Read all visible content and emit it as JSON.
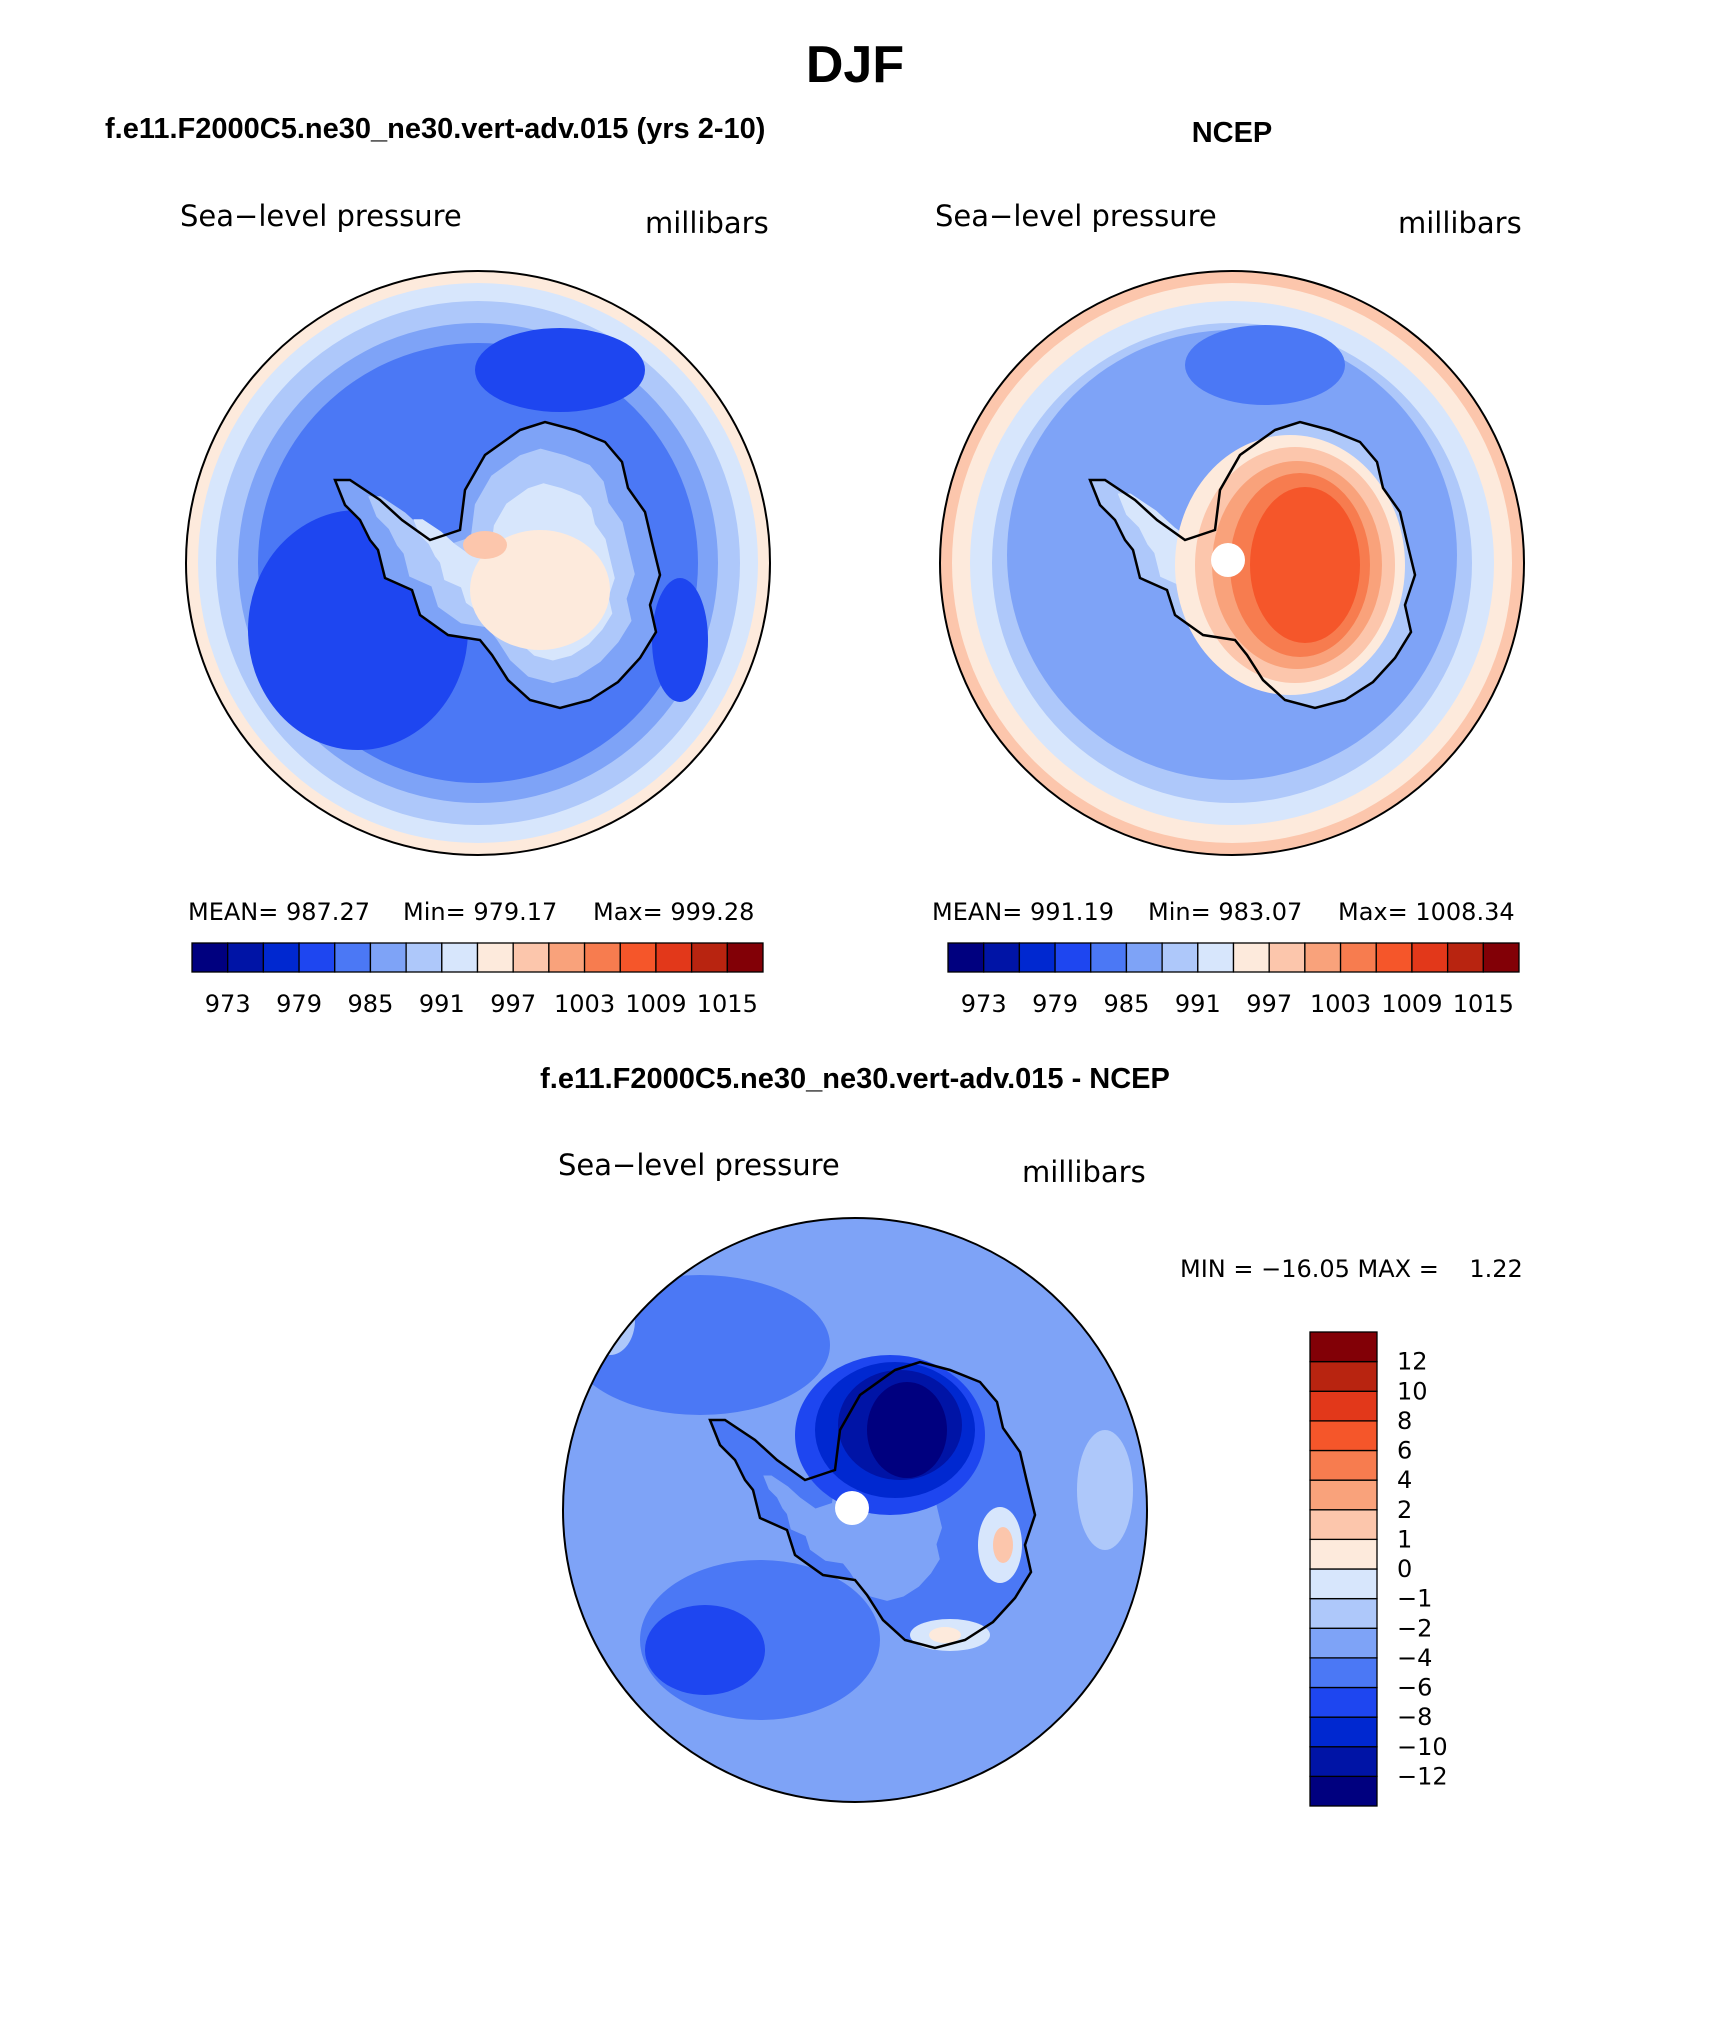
{
  "page": {
    "season": "DJF",
    "diff_title": "f.e11.F2000C5.ne30_ne30.vert-adv.015 - NCEP"
  },
  "colors": {
    "abs_scale": [
      "#00007f",
      "#0014a6",
      "#0028d0",
      "#1e46f0",
      "#4b78f5",
      "#7ea3f7",
      "#aec8fa",
      "#d7e6fc",
      "#fdeadc",
      "#fcc6ac",
      "#f9a27b",
      "#f77c4f",
      "#f5562a",
      "#e2381a",
      "#b82410",
      "#820006"
    ],
    "diff_scale": [
      "#00007f",
      "#0014a6",
      "#0028d0",
      "#1e46f0",
      "#4b78f5",
      "#7ea3f7",
      "#aec8fa",
      "#d7e6fc",
      "#fdeadc",
      "#fcc6ac",
      "#f9a27b",
      "#f77c4f",
      "#f5562a",
      "#e2381a",
      "#b82410",
      "#820006"
    ]
  },
  "panels": {
    "model": {
      "case_title": "f.e11.F2000C5.ne30_ne30.vert-adv.015 (yrs 2-10)",
      "variable": "Sea−level pressure",
      "units": "millibars",
      "stats": {
        "mean_label": "MEAN=",
        "mean": "987.27",
        "min_label": "Min=",
        "min": "979.17",
        "max_label": "Max=",
        "max": "999.28"
      },
      "colorbar_ticks": [
        "973",
        "979",
        "985",
        "991",
        "997",
        "1003",
        "1009",
        "1015"
      ]
    },
    "obs": {
      "case_title": "NCEP",
      "variable": "Sea−level pressure",
      "units": "millibars",
      "stats": {
        "mean_label": "MEAN=",
        "mean": "991.19",
        "min_label": "Min=",
        "min": "983.07",
        "max_label": "Max=",
        "max": "1008.34"
      },
      "colorbar_ticks": [
        "973",
        "979",
        "985",
        "991",
        "997",
        "1003",
        "1009",
        "1015"
      ]
    },
    "diff": {
      "variable": "Sea−level pressure",
      "units": "millibars",
      "minmax": "MIN = −16.05 MAX =    1.22",
      "colorbar_ticks": [
        "12",
        "10",
        "8",
        "6",
        "4",
        "2",
        "1",
        "0",
        "−1",
        "−2",
        "−4",
        "−6",
        "−8",
        "−10",
        "−12"
      ]
    }
  }
}
